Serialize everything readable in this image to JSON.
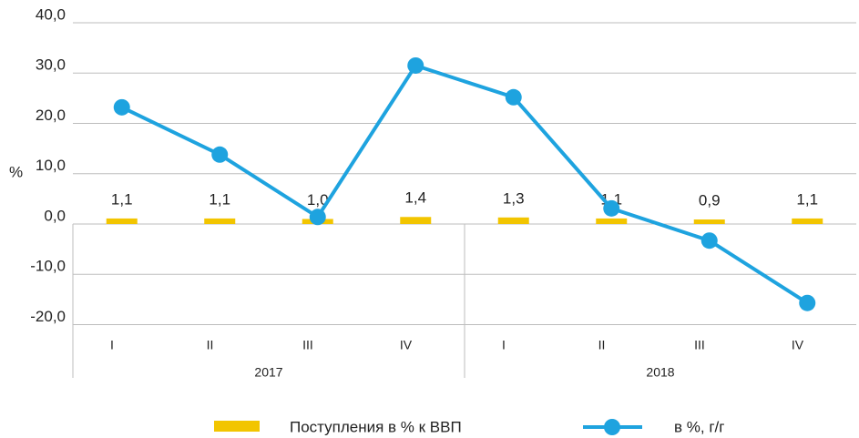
{
  "chart_data": {
    "type": "bar-line",
    "y_label": "%",
    "categories": [
      "I",
      "II",
      "III",
      "IV",
      "I",
      "II",
      "III",
      "IV"
    ],
    "groups": [
      "2017",
      "2018"
    ],
    "series": [
      {
        "name": "Поступления в % к ВВП",
        "type": "bar",
        "color": "#f2c500",
        "values": [
          1.1,
          1.1,
          1.0,
          1.4,
          1.3,
          1.1,
          0.9,
          1.1
        ],
        "value_labels": [
          "1,1",
          "1,1",
          "1,0",
          "1,4",
          "1,3",
          "1,1",
          "0,9",
          "1,1"
        ]
      },
      {
        "name": "в %, г/г",
        "type": "line",
        "color": "#1ea3df",
        "values": [
          23.2,
          13.8,
          1.4,
          31.5,
          25.2,
          3.1,
          -3.3,
          -15.7
        ]
      }
    ],
    "ylim": [
      -20,
      40
    ],
    "yticks": [
      {
        "value": -20,
        "label": "-20,0"
      },
      {
        "value": -10,
        "label": "-10,0"
      },
      {
        "value": 0,
        "label": "0,0"
      },
      {
        "value": 10,
        "label": "10,0"
      },
      {
        "value": 20,
        "label": "20,0"
      },
      {
        "value": 30,
        "label": "30,0"
      },
      {
        "value": 40,
        "label": "40,0"
      }
    ],
    "grid": true
  }
}
